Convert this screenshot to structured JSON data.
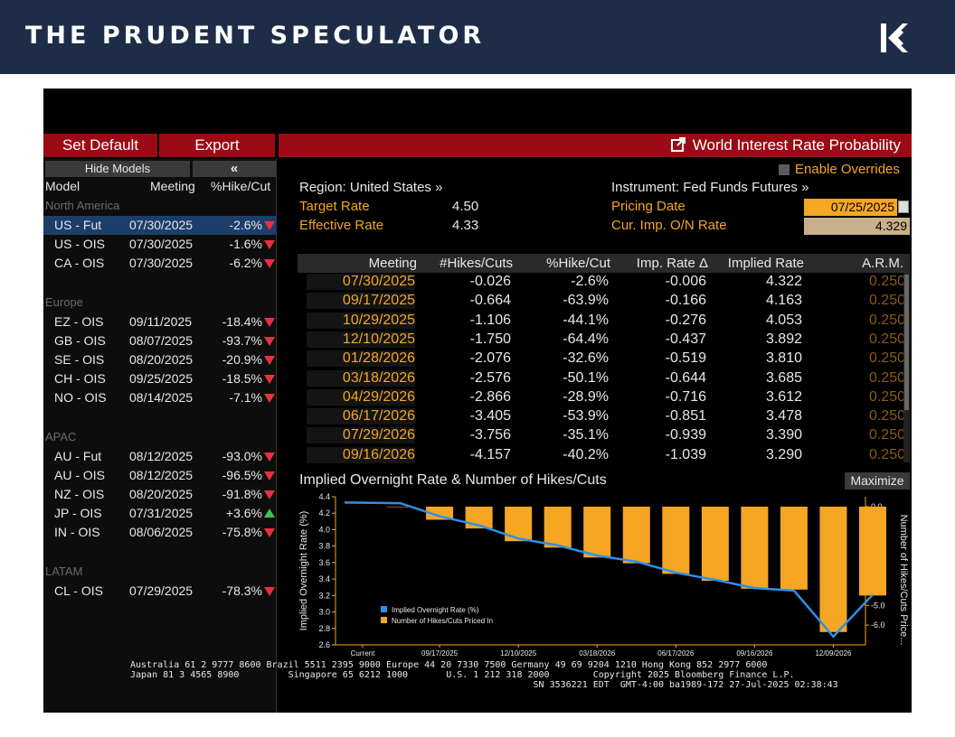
{
  "banner": {
    "title": "THE PRUDENT SPECULATOR"
  },
  "toolbar": {
    "set_default": "Set Default",
    "export": "Export",
    "window_title": "World Interest Rate Probability"
  },
  "side": {
    "hide_models": "Hide Models",
    "collapse": "«",
    "headers": {
      "model": "Model",
      "meeting": "Meeting",
      "hike": "%Hike/Cut"
    },
    "groups": [
      {
        "name": "North America",
        "rows": [
          {
            "model": "US - Fut",
            "meeting": "07/30/2025",
            "pct": "-2.6%",
            "dir": "down",
            "selected": true
          },
          {
            "model": "US - OIS",
            "meeting": "07/30/2025",
            "pct": "-1.6%",
            "dir": "down"
          },
          {
            "model": "CA - OIS",
            "meeting": "07/30/2025",
            "pct": "-6.2%",
            "dir": "down"
          }
        ]
      },
      {
        "name": "Europe",
        "rows": [
          {
            "model": "EZ - OIS",
            "meeting": "09/11/2025",
            "pct": "-18.4%",
            "dir": "down"
          },
          {
            "model": "GB - OIS",
            "meeting": "08/07/2025",
            "pct": "-93.7%",
            "dir": "down"
          },
          {
            "model": "SE - OIS",
            "meeting": "08/20/2025",
            "pct": "-20.9%",
            "dir": "down"
          },
          {
            "model": "CH - OIS",
            "meeting": "09/25/2025",
            "pct": "-18.5%",
            "dir": "down"
          },
          {
            "model": "NO - OIS",
            "meeting": "08/14/2025",
            "pct": "-7.1%",
            "dir": "down"
          }
        ]
      },
      {
        "name": "APAC",
        "rows": [
          {
            "model": "AU - Fut",
            "meeting": "08/12/2025",
            "pct": "-93.0%",
            "dir": "down"
          },
          {
            "model": "AU - OIS",
            "meeting": "08/12/2025",
            "pct": "-96.5%",
            "dir": "down"
          },
          {
            "model": "NZ - OIS",
            "meeting": "08/20/2025",
            "pct": "-91.8%",
            "dir": "down"
          },
          {
            "model": "JP - OIS",
            "meeting": "07/31/2025",
            "pct": "+3.6%",
            "dir": "up"
          },
          {
            "model": "IN - OIS",
            "meeting": "08/06/2025",
            "pct": "-75.8%",
            "dir": "down"
          }
        ]
      },
      {
        "name": "LATAM",
        "rows": [
          {
            "model": "CL - OIS",
            "meeting": "07/29/2025",
            "pct": "-78.3%",
            "dir": "down"
          }
        ]
      }
    ]
  },
  "overrides": {
    "label": "Enable Overrides"
  },
  "info": {
    "region_label": "Region: United States »",
    "target_label": "Target Rate",
    "target_value": "4.50",
    "effective_label": "Effective Rate",
    "effective_value": "4.33",
    "instrument_label": "Instrument: Fed Funds Futures »",
    "pricing_label": "Pricing Date",
    "pricing_value": "07/25/2025",
    "cur_label": "Cur. Imp. O/N Rate",
    "cur_value": "4.329"
  },
  "table": {
    "headers": [
      "Meeting",
      "#Hikes/Cuts",
      "%Hike/Cut",
      "Imp. Rate Δ",
      "Implied Rate",
      "A.R.M."
    ],
    "rows": [
      [
        "07/30/2025",
        "-0.026",
        "-2.6%",
        "-0.006",
        "4.322",
        "0.250"
      ],
      [
        "09/17/2025",
        "-0.664",
        "-63.9%",
        "-0.166",
        "4.163",
        "0.250"
      ],
      [
        "10/29/2025",
        "-1.106",
        "-44.1%",
        "-0.276",
        "4.053",
        "0.250"
      ],
      [
        "12/10/2025",
        "-1.750",
        "-64.4%",
        "-0.437",
        "3.892",
        "0.250"
      ],
      [
        "01/28/2026",
        "-2.076",
        "-32.6%",
        "-0.519",
        "3.810",
        "0.250"
      ],
      [
        "03/18/2026",
        "-2.576",
        "-50.1%",
        "-0.644",
        "3.685",
        "0.250"
      ],
      [
        "04/29/2026",
        "-2.866",
        "-28.9%",
        "-0.716",
        "3.612",
        "0.250"
      ],
      [
        "06/17/2026",
        "-3.405",
        "-53.9%",
        "-0.851",
        "3.478",
        "0.250"
      ],
      [
        "07/29/2026",
        "-3.756",
        "-35.1%",
        "-0.939",
        "3.390",
        "0.250"
      ],
      [
        "09/16/2026",
        "-4.157",
        "-40.2%",
        "-1.039",
        "3.290",
        "0.250"
      ]
    ]
  },
  "chart": {
    "title": "Implied Overnight Rate & Number of Hikes/Cuts",
    "maximize": "Maximize"
  },
  "chart_data": {
    "type": "bar",
    "title": "Implied Overnight Rate & Number of Hikes/Cuts",
    "x_tick_labels": [
      "Current",
      "09/17/2025",
      "12/10/2025",
      "03/18/2026",
      "06/17/2026",
      "09/16/2026",
      "12/09/2026"
    ],
    "ylabel_left": "Implied Overnight Rate (%)",
    "ylabel_right": "Number of Hikes/Cuts Price...",
    "ylim_left": [
      2.6,
      4.4
    ],
    "left_ticks": [
      "2.6",
      "2.8",
      "3.0",
      "3.2",
      "3.4",
      "3.6",
      "3.8",
      "4.0",
      "4.2",
      "4.4"
    ],
    "ylim_right": [
      -7.0,
      0.5
    ],
    "right_ticks": [
      "0.0",
      "-1.0",
      "-2.0",
      "-3.0",
      "-4.0",
      "-5.0",
      "-6.0"
    ],
    "series": [
      {
        "name": "Implied Overnight Rate (%)",
        "type": "line",
        "color": "#2f8fe8",
        "values": [
          4.33,
          4.322,
          4.163,
          4.053,
          3.892,
          3.81,
          3.685,
          3.612,
          3.478,
          3.39,
          3.29,
          3.26,
          2.7,
          3.21
        ]
      },
      {
        "name": "Number of Hikes/Cuts Priced In",
        "type": "bar",
        "color": "#f5a623",
        "values": [
          0,
          -0.026,
          -0.664,
          -1.106,
          -1.75,
          -2.076,
          -2.576,
          -2.866,
          -3.405,
          -3.756,
          -4.157,
          -4.2,
          -6.35,
          -4.5
        ]
      }
    ],
    "legend": "bottom-left"
  },
  "footer": {
    "line1": "Australia 61 2 9777 8600 Brazil 5511 2395 9000 Europe 44 20 7330 7500 Germany 49 69 9204 1210 Hong Kong 852 2977 6000",
    "line2": "Japan 81 3 4565 8900         Singapore 65 6212 1000       U.S. 1 212 318 2000        Copyright 2025 Bloomberg Finance L.P.",
    "line3": "                                                                          SN 3536221 EDT  GMT-4:00 ba1989-172 27-Jul-2025 02:38:43"
  }
}
